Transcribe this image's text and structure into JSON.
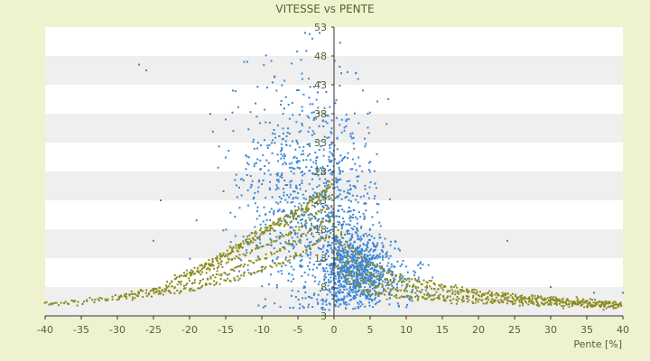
{
  "chart_data": {
    "type": "scatter",
    "title": "VITESSE vs PENTE",
    "xlabel": "Pente [%]",
    "ylabel": "",
    "xlim": [
      -40,
      40
    ],
    "ylim": [
      3,
      53
    ],
    "x_ticks": [
      "-40",
      "-35",
      "-30",
      "-25",
      "-20",
      "-15",
      "-10",
      "-5",
      "0",
      "5",
      "10",
      "15",
      "20",
      "25",
      "30",
      "35",
      "40"
    ],
    "y_ticks": [
      "3",
      "8",
      "13",
      "18",
      "23",
      "28",
      "33",
      "38",
      "43",
      "48",
      "53"
    ],
    "grid": true,
    "legend": "none",
    "colors": {
      "background": "#eff2cf",
      "plot_bands_light": "#ffffff",
      "plot_bands_dark": "#efefef",
      "text": "#55612a",
      "axis": "#333333",
      "series_measured": "#3b86d6",
      "series_model": "#8a8a1a"
    },
    "series": [
      {
        "name": "",
        "marker": "blue-dot",
        "description_points": "dense cloud of measured speed vs slope values",
        "clusters": [
          {
            "x_center": 0,
            "y_center": 20,
            "x_spread": 3,
            "y_spread": 10,
            "count": 500
          },
          {
            "x_center": 3,
            "y_center": 11,
            "x_spread": 2.5,
            "y_spread": 3,
            "count": 700
          },
          {
            "x_center": -5,
            "y_center": 26,
            "x_spread": 4,
            "y_spread": 10,
            "count": 400
          },
          {
            "x_center": -9,
            "y_center": 22,
            "x_spread": 4,
            "y_spread": 8,
            "count": 150
          },
          {
            "x_center": 6,
            "y_center": 9,
            "x_spread": 3,
            "y_spread": 2.5,
            "count": 200
          }
        ],
        "sample_points": [
          [
            -27,
            46.5
          ],
          [
            -26,
            45.5
          ],
          [
            -24,
            23
          ],
          [
            -25,
            16
          ],
          [
            -15,
            37
          ],
          [
            -14,
            42
          ],
          [
            -4,
            52
          ],
          [
            -2,
            52
          ],
          [
            -3,
            51
          ],
          [
            1,
            45
          ],
          [
            3,
            45
          ],
          [
            4,
            42
          ],
          [
            24,
            16
          ],
          [
            30,
            8
          ],
          [
            36,
            7
          ],
          [
            40,
            7
          ],
          [
            -12,
            47
          ]
        ]
      },
      {
        "name": "",
        "marker": "olive-dot",
        "description_points": "model curves: speed as a function of slope for several levels",
        "curves_downhill": [
          {
            "x": [
              -40,
              -30,
              -20,
              -15,
              -10,
              -5,
              -2,
              0
            ],
            "y": [
              5,
              6,
              7.5,
              9,
              11,
              13.5,
              16,
              17
            ]
          },
          {
            "x": [
              -30,
              -20,
              -15,
              -10,
              -5,
              -2,
              0
            ],
            "y": [
              6.5,
              8.5,
              10.5,
              13,
              16,
              19,
              20
            ]
          },
          {
            "x": [
              -25,
              -20,
              -15,
              -10,
              -5,
              -2,
              0
            ],
            "y": [
              7.5,
              10,
              12,
              15,
              18,
              21,
              22
            ]
          },
          {
            "x": [
              -22,
              -15,
              -10,
              -5,
              -2,
              0
            ],
            "y": [
              9.5,
              13.5,
              17,
              20,
              23,
              24
            ]
          },
          {
            "x": [
              -20,
              -15,
              -10,
              -5,
              -2,
              0
            ],
            "y": [
              10,
              14,
              18,
              21,
              24,
              26
            ]
          },
          {
            "x": [
              -18,
              -12,
              -8,
              -4,
              -1,
              0
            ],
            "y": [
              11,
              15.5,
              19,
              22,
              25,
              27
            ]
          }
        ],
        "curves_uphill": [
          {
            "x": [
              0,
              2,
              5,
              10,
              15,
              20,
              25,
              30,
              35,
              40
            ],
            "y": [
              19,
              15,
              12,
              9.5,
              8.2,
              7.2,
              6.5,
              6.0,
              5.5,
              5.0
            ]
          },
          {
            "x": [
              0,
              2,
              5,
              10,
              15,
              20,
              25,
              30,
              35,
              40
            ],
            "y": [
              17,
              13,
              10,
              8.5,
              7.5,
              6.8,
              6.2,
              5.7,
              5.3,
              5.0
            ]
          },
          {
            "x": [
              0,
              2,
              5,
              10,
              15,
              20,
              25,
              30,
              35,
              40
            ],
            "y": [
              14,
              11,
              8.5,
              7.2,
              6.5,
              6.0,
              5.6,
              5.3,
              5.0,
              4.8
            ]
          },
          {
            "x": [
              0,
              2,
              5,
              10,
              15,
              20,
              25,
              30,
              35,
              40
            ],
            "y": [
              12,
              9,
              7,
              6.2,
              5.8,
              5.5,
              5.2,
              5.0,
              4.8,
              4.6
            ]
          }
        ]
      }
    ]
  }
}
